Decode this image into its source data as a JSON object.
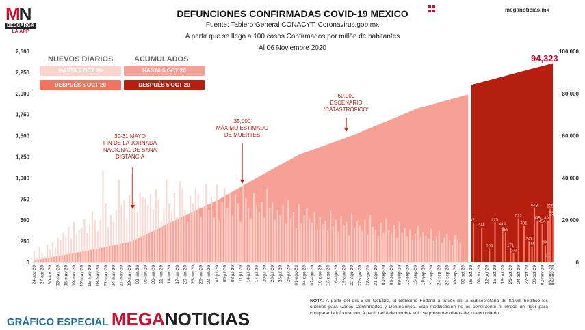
{
  "logo": {
    "mark_left": "M",
    "mark_right": "N",
    "tag": "DESCARGA",
    "sub": "LA APP"
  },
  "site": "meganoticias.mx",
  "chart_data": {
    "type": "bar+area",
    "title": "DEFUNCIONES CONFIRMADAS COVID-19 MEXICO",
    "subtitle_lines": [
      "Fuente: Tablero General CONACYT. Coronavirus.gob.mx",
      "A partir que se llegó a 100 casos Confirmados por millón de habitantes",
      "Al 06 Noviembre 2020"
    ],
    "left_axis": {
      "ticks": [
        "0",
        "250",
        "500",
        "750",
        "1,000",
        "1,250",
        "1,500",
        "1,750",
        "2,000",
        "2,250",
        "2,500"
      ],
      "range": [
        0,
        2500
      ]
    },
    "right_axis": {
      "ticks": [
        "0",
        "20,000",
        "40,000",
        "60,000",
        "80,000",
        "100,000"
      ],
      "range": [
        0,
        100000
      ]
    },
    "x_ticks": [
      "24-abr-20",
      "27-abr-20",
      "30-abr-20",
      "03-may-20",
      "06-may-20",
      "09-may-20",
      "12-may-20",
      "15-may-20",
      "18-may-20",
      "21-may-20",
      "24-may-20",
      "27-may-20",
      "30-may-20",
      "02-jun-20",
      "05-jun-20",
      "08-jun-20",
      "11-jun-20",
      "14-jun-20",
      "17-jun-20",
      "20-jun-20",
      "23-jun-20",
      "26-jun-20",
      "29-jun-20",
      "02-jul-20",
      "05-jul-20",
      "08-jul-20",
      "11-jul-20",
      "14-jul-20",
      "17-jul-20",
      "20-jul-20",
      "23-jul-20",
      "26-jul-20",
      "29-jul-20",
      "01-ago-20",
      "04-ago-20",
      "07-ago-20",
      "10-ago-20",
      "13-ago-20",
      "16-ago-20",
      "19-ago-20",
      "22-ago-20",
      "25-ago-20",
      "28-ago-20",
      "31-ago-20",
      "03-sep-20",
      "06-sep-20",
      "09-sep-20",
      "12-sep-20",
      "15-sep-20",
      "18-sep-20",
      "21-sep-20",
      "24-sep-20",
      "27-sep-20",
      "30-sep-20",
      "03-oct-20",
      "06-oct-20",
      "09-oct-20",
      "12-oct-20",
      "15-oct-20",
      "18-oct-20",
      "21-oct-20",
      "24-oct-20",
      "27-oct-20",
      "30-oct-20",
      "02-nov-20",
      "05-nov-20",
      "06-nov-20"
    ],
    "series": [
      {
        "name": "NUEVOS DIARIOS - HASTA 5 OCT 20",
        "color": "#f9d4cc"
      },
      {
        "name": "NUEVOS DIARIOS - DESPUÉS 5 OCT 20",
        "color": "#f0735f"
      },
      {
        "name": "ACUMULADOS - HASTA 5 OCT 20",
        "color": "#f7a096"
      },
      {
        "name": "ACUMULADOS - DESPUÉS 5 OCT 20",
        "color": "#b51f10"
      }
    ],
    "cumulative_anchors": [
      {
        "day": 0,
        "value": 1000
      },
      {
        "day": 20,
        "value": 5500
      },
      {
        "day": 37,
        "value": 10000
      },
      {
        "day": 55,
        "value": 21000
      },
      {
        "day": 70,
        "value": 30000
      },
      {
        "day": 84,
        "value": 40000
      },
      {
        "day": 100,
        "value": 51000
      },
      {
        "day": 120,
        "value": 60000
      },
      {
        "day": 145,
        "value": 73000
      },
      {
        "day": 164,
        "value": 79500
      },
      {
        "day": 165,
        "value": 84000
      },
      {
        "day": 196,
        "value": 94323
      }
    ],
    "daily_before": [
      130,
      60,
      180,
      110,
      70,
      210,
      150,
      240,
      170,
      290,
      260,
      350,
      300,
      420,
      280,
      480,
      330,
      380,
      410,
      520,
      350,
      450,
      600,
      500,
      370,
      500,
      1080,
      700,
      420,
      560,
      480,
      620,
      980,
      680,
      740,
      520,
      800,
      1050,
      720,
      590,
      830,
      780,
      760,
      680,
      810,
      630,
      870,
      750,
      480,
      640,
      980,
      700,
      590,
      820,
      540,
      960,
      870,
      620,
      480,
      790,
      700,
      880,
      810,
      540,
      660,
      930,
      620,
      780,
      530,
      920,
      500,
      720,
      880,
      640,
      830,
      560,
      800,
      700,
      480,
      920,
      760,
      640,
      520,
      820,
      680,
      590,
      720,
      530,
      870,
      640,
      710,
      500,
      620,
      560,
      680,
      460,
      740,
      520,
      590,
      410,
      690,
      460,
      560,
      640,
      520,
      470,
      600,
      390,
      540,
      450,
      490,
      380,
      610,
      430,
      500,
      360,
      550,
      440,
      480,
      320,
      580,
      410,
      490,
      430,
      370,
      500,
      330,
      560,
      420,
      390,
      310,
      470,
      350,
      520,
      380,
      330,
      440,
      290,
      480,
      350,
      410,
      300,
      390,
      260,
      340,
      430,
      300,
      360,
      320,
      280,
      400,
      250,
      310,
      370,
      230,
      290,
      340,
      260,
      200,
      320,
      270,
      240
    ],
    "daily_after_labels": [
      {
        "day": 166,
        "value": 471
      },
      {
        "day": 169,
        "value": 411
      },
      {
        "day": 172,
        "value": 164
      },
      {
        "day": 174,
        "value": 475
      },
      {
        "day": 177,
        "value": 419
      },
      {
        "day": 178,
        "value": 355
      },
      {
        "day": 180,
        "value": 171
      },
      {
        "day": 181,
        "value": 108
      },
      {
        "day": 183,
        "value": 522
      },
      {
        "day": 185,
        "value": 431
      },
      {
        "day": 187,
        "value": 247
      },
      {
        "day": 188,
        "value": 189
      },
      {
        "day": 189,
        "value": 643
      },
      {
        "day": 190,
        "value": 495
      },
      {
        "day": 192,
        "value": 454
      },
      {
        "day": 193,
        "value": 206
      },
      {
        "day": 194,
        "value": 43
      },
      {
        "day": 194,
        "value": 493
      },
      {
        "day": 195,
        "value": 635
      },
      {
        "day": 196,
        "value": 551
      }
    ],
    "final_value_label": "94,323",
    "annotations": [
      {
        "lines": [
          "30-31 MAYO",
          "FIN DE LA JORNADA",
          "NACIONAL DE SANA",
          "DISTANCIA"
        ]
      },
      {
        "lines": [
          "35,000",
          "MÁXIMO ESTIMADO",
          "DE MUERTES"
        ]
      },
      {
        "lines": [
          "60,000",
          "ESCENARIO",
          "'CATASTRÓFICO'"
        ]
      }
    ]
  },
  "legend": {
    "col1_title": "NUEVOS DIARIOS",
    "col2_title": "ACUMULADOS",
    "before": "HASTA 5 OCT 20",
    "after": "DESPUÉS 5 OCT 20"
  },
  "note": {
    "label": "NOTA",
    "text": ": A partir del día 5 de Octubre, el Gobierno Federal a través de la Subsecretaría de Salud modificó los criterios para Casos Confirmados y Defunciones. Esta modificación no es consistente ni ofrece un rigor para comparar la información. A partir del 8 de octubre sólo se presentan datos del nuevo criterio."
  },
  "footer": {
    "special": "GRÁFICO ESPECIAL",
    "brand_a": "MEGA",
    "brand_b": "NOTICIAS"
  }
}
